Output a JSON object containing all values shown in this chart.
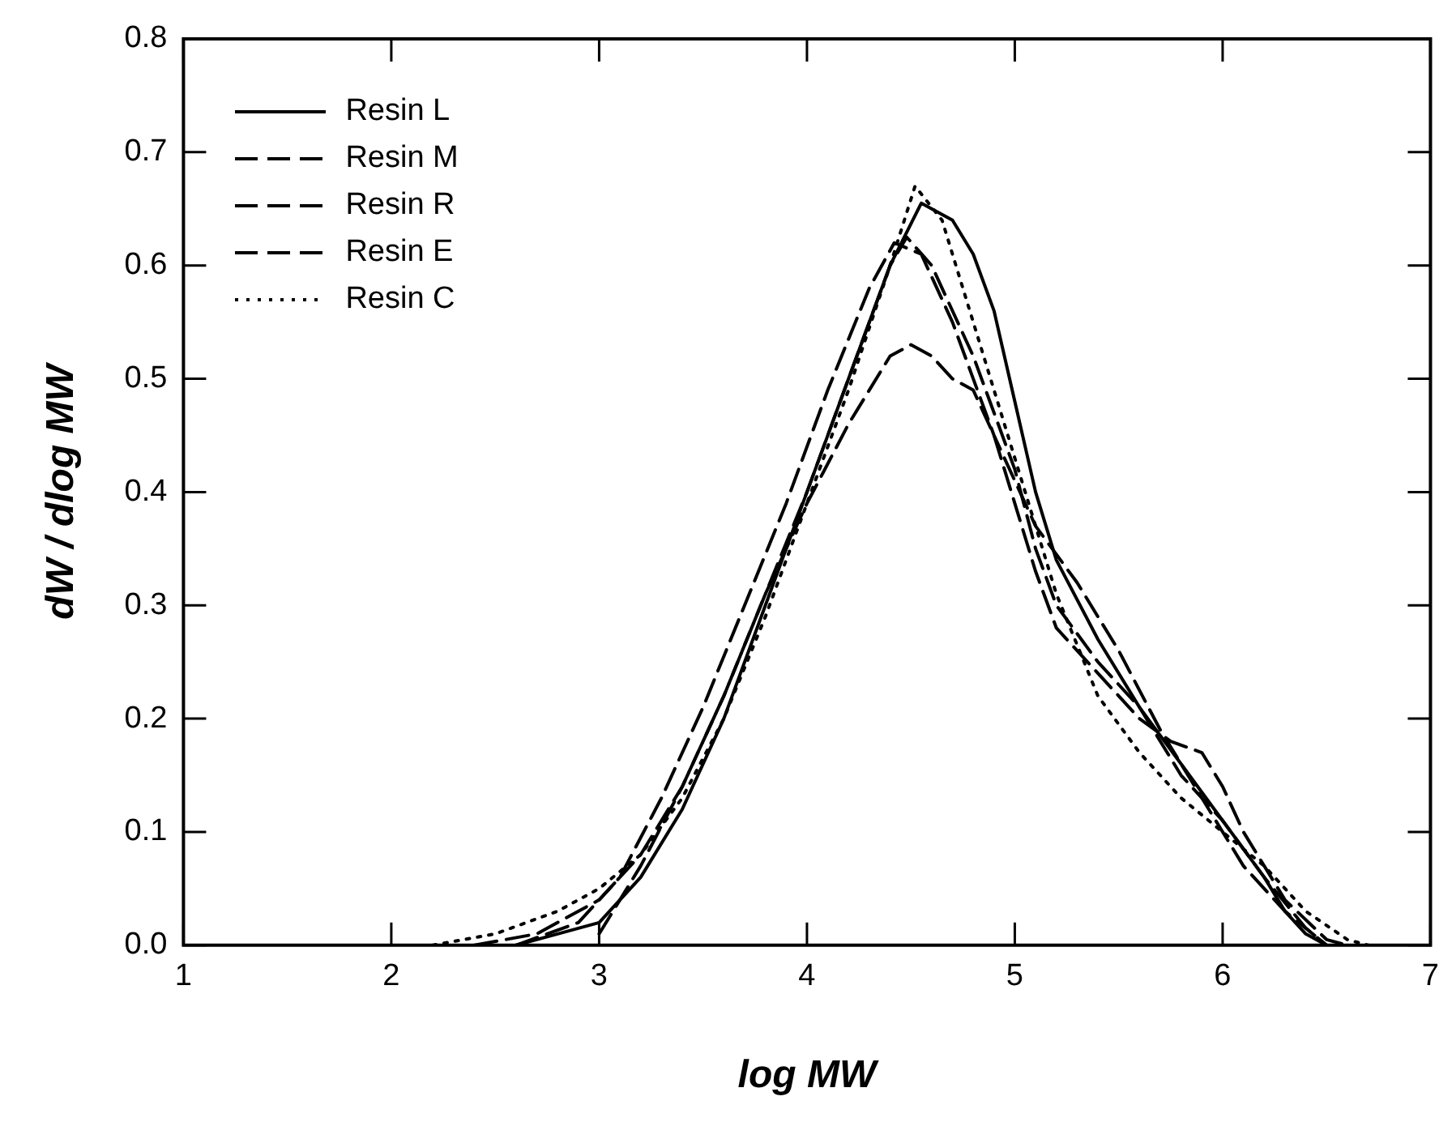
{
  "chart_data": {
    "type": "line",
    "xlabel": "log MW",
    "ylabel": "dW / dlog MW",
    "xlim": [
      1,
      7
    ],
    "xticks": [
      1,
      2,
      3,
      4,
      5,
      6,
      7
    ],
    "ylim": [
      0,
      0.8
    ],
    "yticks": [
      {
        "value": 0,
        "label": "0.0"
      },
      {
        "value": 0.1,
        "label": "0.1"
      },
      {
        "value": 0.2,
        "label": "0.2"
      },
      {
        "value": 0.3,
        "label": "0.3"
      },
      {
        "value": 0.4,
        "label": "0.4"
      },
      {
        "value": 0.5,
        "label": "0.5"
      },
      {
        "value": 0.6,
        "label": "0.6"
      },
      {
        "value": 0.7,
        "label": "0.7"
      },
      {
        "value": 0.8,
        "label": "0.8"
      }
    ],
    "grid": false,
    "legend": "top left",
    "marker": "none",
    "series": [
      {
        "name": "Resin L",
        "color": "#000000",
        "line_style": "solid",
        "x": [
          2.6,
          2.8,
          3.0,
          3.2,
          3.4,
          3.6,
          3.8,
          4.0,
          4.2,
          4.4,
          4.55,
          4.7,
          4.8,
          4.9,
          5.0,
          5.1,
          5.2,
          5.4,
          5.6,
          5.8,
          6.0,
          6.2,
          6.3,
          6.4,
          6.5
        ],
        "values": [
          0,
          0.01,
          0.02,
          0.06,
          0.12,
          0.2,
          0.3,
          0.4,
          0.5,
          0.6,
          0.655,
          0.64,
          0.61,
          0.56,
          0.48,
          0.4,
          0.34,
          0.27,
          0.21,
          0.16,
          0.11,
          0.06,
          0.03,
          0.01,
          0
        ]
      },
      {
        "name": "Resin M",
        "color": "#000000",
        "line_style": "dashed",
        "x": [
          3.0,
          3.2,
          3.4,
          3.6,
          3.8,
          4.0,
          4.2,
          4.4,
          4.48,
          4.6,
          4.8,
          5.0,
          5.1,
          5.2,
          5.4,
          5.6,
          5.8,
          6.0,
          6.2,
          6.4,
          6.5
        ],
        "values": [
          0.01,
          0.07,
          0.14,
          0.22,
          0.31,
          0.4,
          0.5,
          0.6,
          0.625,
          0.6,
          0.52,
          0.42,
          0.35,
          0.3,
          0.25,
          0.21,
          0.15,
          0.11,
          0.06,
          0.015,
          0
        ]
      },
      {
        "name": "Resin R",
        "color": "#000000",
        "line_style": "dashed",
        "x": [
          2.4,
          2.7,
          3.0,
          3.2,
          3.4,
          3.6,
          3.8,
          4.0,
          4.2,
          4.4,
          4.5,
          4.6,
          4.7,
          4.8,
          4.9,
          5.0,
          5.1,
          5.2,
          5.4,
          5.6,
          5.75,
          5.9,
          6.0,
          6.1,
          6.3,
          6.5,
          6.6
        ],
        "values": [
          0,
          0.01,
          0.04,
          0.08,
          0.14,
          0.22,
          0.31,
          0.39,
          0.46,
          0.52,
          0.53,
          0.52,
          0.5,
          0.49,
          0.45,
          0.39,
          0.33,
          0.28,
          0.24,
          0.2,
          0.18,
          0.17,
          0.14,
          0.1,
          0.04,
          0.005,
          0
        ]
      },
      {
        "name": "Resin E",
        "color": "#000000",
        "line_style": "dashed",
        "x": [
          2.6,
          2.9,
          3.1,
          3.3,
          3.5,
          3.7,
          3.9,
          4.1,
          4.3,
          4.42,
          4.55,
          4.7,
          4.9,
          5.1,
          5.3,
          5.5,
          5.7,
          5.9,
          6.1,
          6.3,
          6.5
        ],
        "values": [
          0,
          0.02,
          0.06,
          0.13,
          0.21,
          0.3,
          0.39,
          0.49,
          0.58,
          0.62,
          0.61,
          0.55,
          0.45,
          0.37,
          0.32,
          0.26,
          0.19,
          0.13,
          0.07,
          0.03,
          0
        ]
      },
      {
        "name": "Resin C",
        "color": "#000000",
        "line_style": "dotted",
        "x": [
          2.2,
          2.5,
          2.8,
          3.0,
          3.2,
          3.4,
          3.6,
          3.8,
          4.0,
          4.2,
          4.4,
          4.52,
          4.65,
          4.8,
          5.0,
          5.2,
          5.4,
          5.6,
          5.8,
          6.0,
          6.2,
          6.4,
          6.6,
          6.7
        ],
        "values": [
          0,
          0.01,
          0.03,
          0.05,
          0.08,
          0.13,
          0.2,
          0.29,
          0.39,
          0.49,
          0.6,
          0.67,
          0.64,
          0.55,
          0.43,
          0.31,
          0.22,
          0.17,
          0.13,
          0.1,
          0.07,
          0.03,
          0.005,
          0
        ]
      }
    ]
  }
}
